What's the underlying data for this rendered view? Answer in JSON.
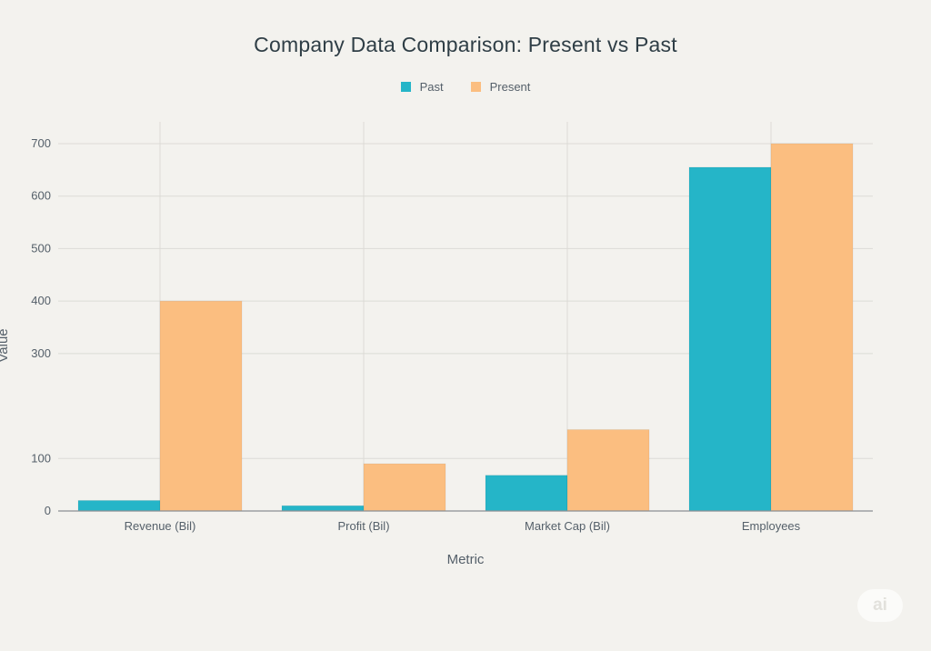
{
  "chart_data": {
    "type": "bar",
    "title": "Company Data Comparison: Present vs Past",
    "xlabel": "Metric",
    "ylabel": "Value",
    "categories": [
      "Revenue (Bil)",
      "Profit (Bil)",
      "Market Cap (Bil)",
      "Employees"
    ],
    "series": [
      {
        "name": "Past",
        "color": "#25b5c8",
        "values": [
          20,
          10,
          68,
          655
        ]
      },
      {
        "name": "Present",
        "color": "#fbbe80",
        "values": [
          400,
          90,
          155,
          700
        ]
      }
    ],
    "ylim": [
      0,
      700
    ],
    "yticks": [
      0,
      100,
      300,
      400,
      500,
      600,
      700
    ],
    "grid": true,
    "legend": "top-center"
  },
  "watermark": {
    "text": "ai"
  }
}
